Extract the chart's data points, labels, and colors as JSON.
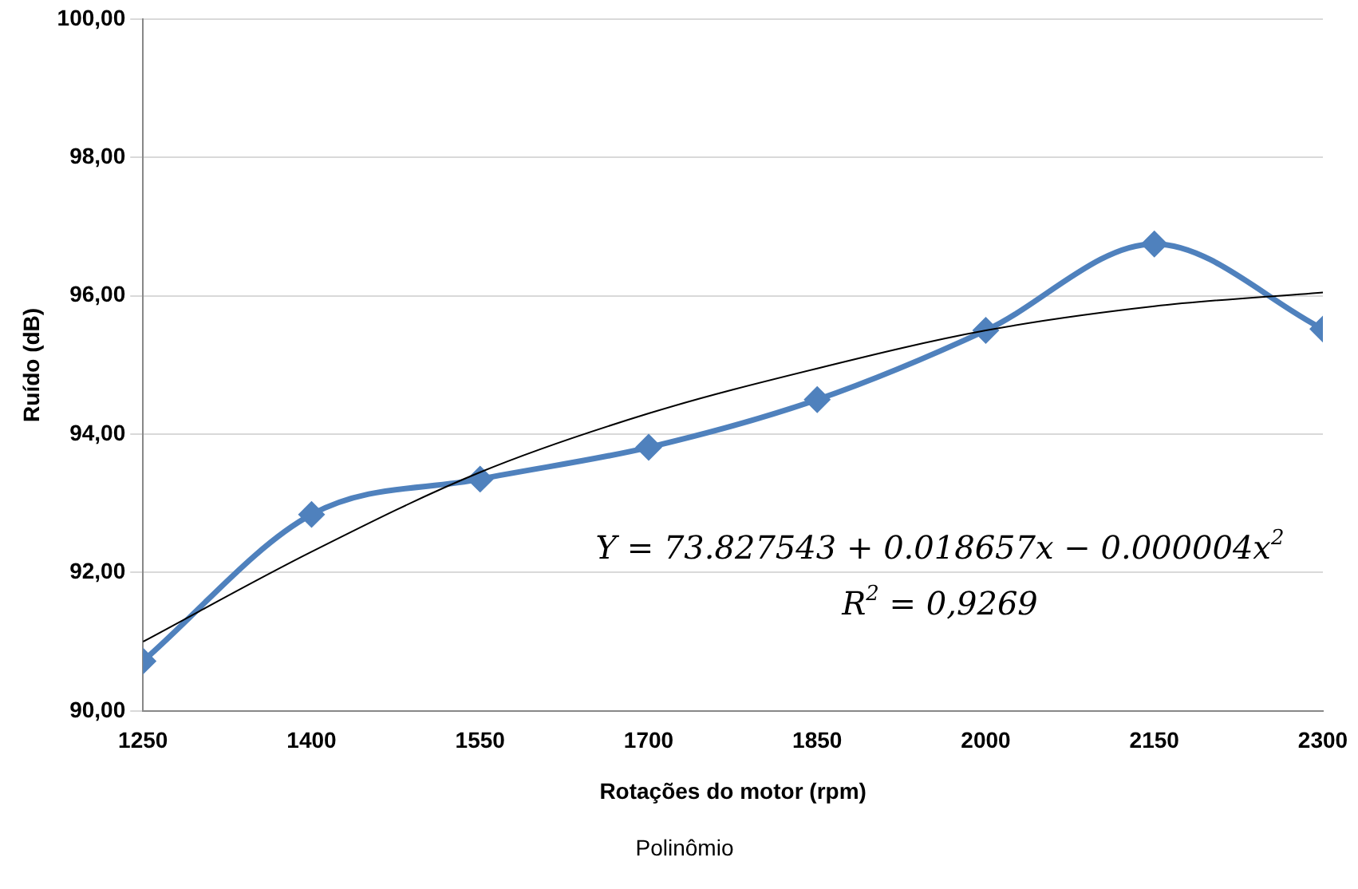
{
  "chart_data": {
    "type": "line",
    "xlabel": "Rotações do motor (rpm)",
    "ylabel": "Ruído (dB)",
    "xlim": [
      1250,
      2300
    ],
    "xticks": [
      1250,
      1400,
      1550,
      1700,
      1850,
      2000,
      2150,
      2300
    ],
    "ylim": [
      90,
      100
    ],
    "yticks": [
      {
        "value": 90,
        "label": "90,00"
      },
      {
        "value": 92,
        "label": "92,00"
      },
      {
        "value": 94,
        "label": "94,00"
      },
      {
        "value": 96,
        "label": "96,00"
      },
      {
        "value": 98,
        "label": "98,00"
      },
      {
        "value": 100,
        "label": "100,00"
      }
    ],
    "grid": "y",
    "legend": "bottom",
    "line_style": "solid",
    "annotations": [
      "Y = 73.827543 + 0.018657x − 0.000004x$^{2}$",
      "R$^{2}$ = 0,9269"
    ],
    "series": [
      {
        "color": "#4f81bd",
        "marker": "diamond",
        "x": [
          1250,
          1400,
          1550,
          1700,
          1850,
          2000,
          2150,
          2300
        ],
        "values": [
          90.72,
          92.84,
          93.35,
          93.81,
          94.5,
          95.5,
          96.75,
          95.52
        ]
      },
      {
        "type": "line",
        "name": "Polinômio",
        "color": "#000000",
        "marker": "none",
        "x": [
          1250,
          1400,
          1550,
          1700,
          1850,
          2000,
          2150,
          2300
        ],
        "values": [
          91.0,
          92.3,
          93.45,
          94.3,
          94.95,
          95.5,
          95.85,
          96.05
        ]
      }
    ]
  }
}
